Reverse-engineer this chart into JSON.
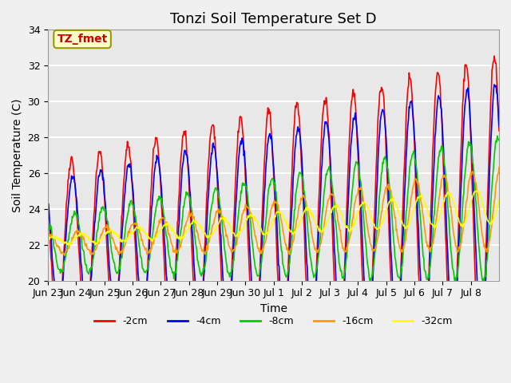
{
  "title": "Tonzi Soil Temperature Set D",
  "xlabel": "Time",
  "ylabel": "Soil Temperature (C)",
  "ylim": [
    20,
    34
  ],
  "n_days": 16,
  "annotation_text": "TZ_fmet",
  "annotation_color": "#cc0000",
  "annotation_bg": "#ffffcc",
  "annotation_border": "#999900",
  "legend_labels": [
    "-2cm",
    "-4cm",
    "-8cm",
    "-16cm",
    "-32cm"
  ],
  "line_colors": [
    "#ff0000",
    "#0000ff",
    "#00cc00",
    "#ff9900",
    "#ffff00"
  ],
  "xtick_labels": [
    "Jun 23",
    "Jun 24",
    "Jun 25",
    "Jun 26",
    "Jun 27",
    "Jun 28",
    "Jun 29",
    "Jun 30",
    "Jul 1",
    "Jul 2",
    "Jul 3",
    "Jul 4",
    "Jul 5",
    "Jul 6",
    "Jul 7",
    "Jul 8"
  ],
  "ytick_vals": [
    20,
    22,
    24,
    26,
    28,
    30,
    32,
    34
  ],
  "background_color": "#e8e8e8",
  "plot_bg_color": "#e8e8e8",
  "grid_color": "#ffffff",
  "title_fontsize": 13,
  "label_fontsize": 10,
  "tick_fontsize": 9
}
